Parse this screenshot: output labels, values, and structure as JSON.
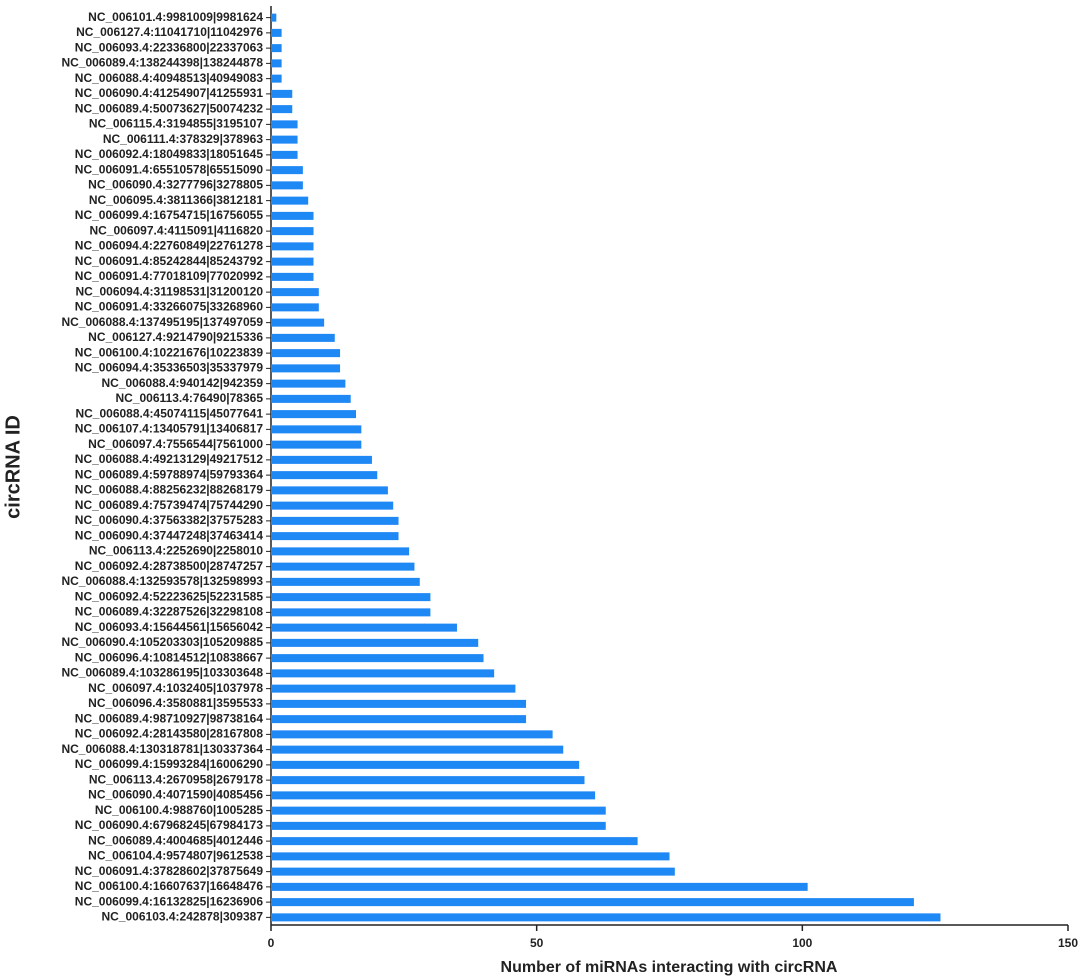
{
  "chart_data": {
    "type": "hbar",
    "x_label": "Number of miRNAs interacting with circRNA",
    "y_label": "circRNA ID",
    "color": "#1e88f5",
    "xlim": [
      0,
      150
    ],
    "xticks": [
      0,
      50,
      100,
      150
    ],
    "categories": [
      "NC_006101.4:9981009|9981624",
      "NC_006127.4:11041710|11042976",
      "NC_006093.4:22336800|22337063",
      "NC_006089.4:138244398|138244878",
      "NC_006088.4:40948513|40949083",
      "NC_006090.4:41254907|41255931",
      "NC_006089.4:50073627|50074232",
      "NC_006115.4:3194855|3195107",
      "NC_006111.4:378329|378963",
      "NC_006092.4:18049833|18051645",
      "NC_006091.4:65510578|65515090",
      "NC_006090.4:3277796|3278805",
      "NC_006095.4:3811366|3812181",
      "NC_006099.4:16754715|16756055",
      "NC_006097.4:4115091|4116820",
      "NC_006094.4:22760849|22761278",
      "NC_006091.4:85242844|85243792",
      "NC_006091.4:77018109|77020992",
      "NC_006094.4:31198531|31200120",
      "NC_006091.4:33266075|33268960",
      "NC_006088.4:137495195|137497059",
      "NC_006127.4:9214790|9215336",
      "NC_006100.4:10221676|10223839",
      "NC_006094.4:35336503|35337979",
      "NC_006088.4:940142|942359",
      "NC_006113.4:76490|78365",
      "NC_006088.4:45074115|45077641",
      "NC_006107.4:13405791|13406817",
      "NC_006097.4:7556544|7561000",
      "NC_006088.4:49213129|49217512",
      "NC_006089.4:59788974|59793364",
      "NC_006088.4:88256232|88268179",
      "NC_006089.4:75739474|75744290",
      "NC_006090.4:37563382|37575283",
      "NC_006090.4:37447248|37463414",
      "NC_006113.4:2252690|2258010",
      "NC_006092.4:28738500|28747257",
      "NC_006088.4:132593578|132598993",
      "NC_006092.4:52223625|52231585",
      "NC_006089.4:32287526|32298108",
      "NC_006093.4:15644561|15656042",
      "NC_006090.4:105203303|105209885",
      "NC_006096.4:10814512|10838667",
      "NC_006089.4:103286195|103303648",
      "NC_006097.4:1032405|1037978",
      "NC_006096.4:3580881|3595533",
      "NC_006089.4:98710927|98738164",
      "NC_006092.4:28143580|28167808",
      "NC_006088.4:130318781|130337364",
      "NC_006099.4:15993284|16006290",
      "NC_006113.4:2670958|2679178",
      "NC_006090.4:4071590|4085456",
      "NC_006100.4:988760|1005285",
      "NC_006090.4:67968245|67984173",
      "NC_006089.4:4004685|4012446",
      "NC_006104.4:9574807|9612538",
      "NC_006091.4:37828602|37875649",
      "NC_006100.4:16607637|16648476",
      "NC_006099.4:16132825|16236906",
      "NC_006103.4:242878|309387"
    ],
    "values": [
      1,
      2,
      2,
      2,
      2,
      4,
      4,
      5,
      5,
      5,
      6,
      6,
      7,
      8,
      8,
      8,
      8,
      8,
      9,
      9,
      10,
      12,
      13,
      13,
      14,
      15,
      16,
      17,
      17,
      19,
      20,
      22,
      23,
      24,
      24,
      26,
      27,
      28,
      30,
      30,
      35,
      39,
      40,
      42,
      46,
      48,
      48,
      53,
      55,
      58,
      59,
      61,
      63,
      63,
      69,
      75,
      76,
      101,
      121,
      126
    ]
  }
}
